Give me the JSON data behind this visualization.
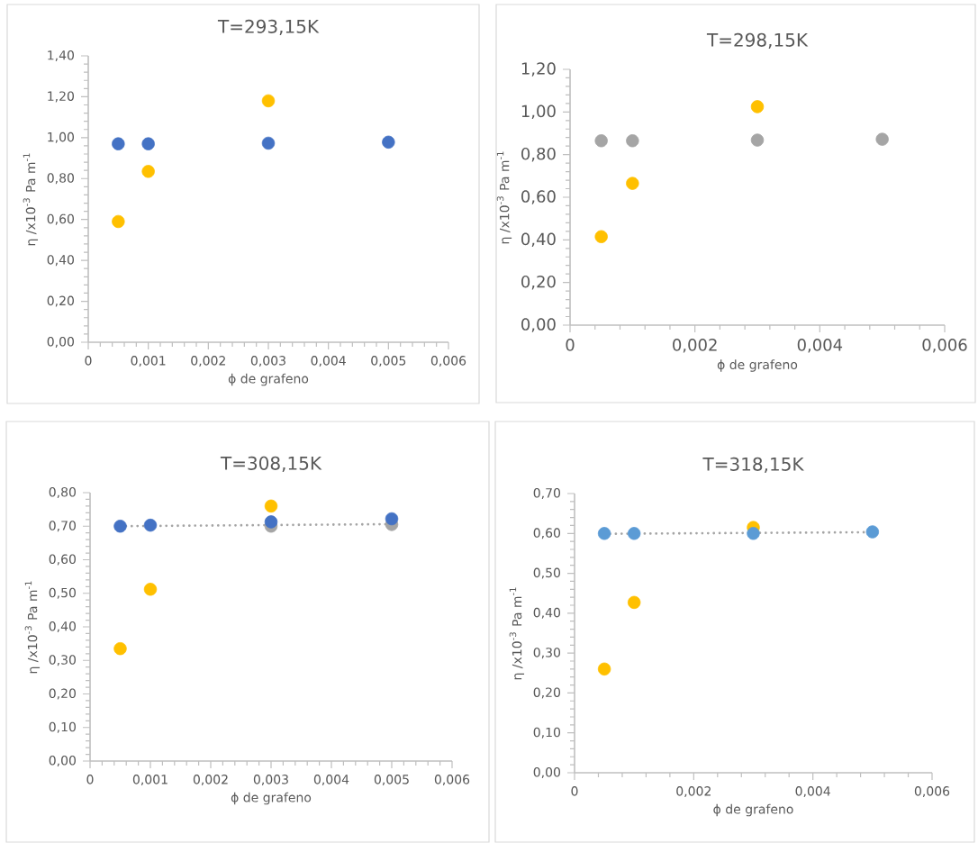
{
  "chart_data": [
    {
      "type": "scatter",
      "title": "T=293,15K",
      "xlabel": "ϕ de grafeno",
      "ylabel": "η /x10$^{-3}$ Pa m$^{-1}$",
      "grid": false,
      "xlim": [
        0,
        0.006
      ],
      "ylim": [
        0,
        1.4
      ],
      "xticks": [
        0,
        {
          "value": 0.001,
          "label": "0,001"
        },
        {
          "value": 0.002,
          "label": "0,002"
        },
        {
          "value": 0.003,
          "label": "0,003"
        },
        {
          "value": 0.004,
          "label": "0,004"
        },
        {
          "value": 0.005,
          "label": "0,005"
        },
        {
          "value": 0.006,
          "label": "0,006"
        }
      ],
      "yticks": [
        {
          "value": 0,
          "label": "0,00"
        },
        {
          "value": 0.2,
          "label": "0,20"
        },
        {
          "value": 0.4,
          "label": "0,40"
        },
        {
          "value": 0.6,
          "label": "0,60"
        },
        {
          "value": 0.8,
          "label": "0,80"
        },
        {
          "value": 1.0,
          "label": "1,00"
        },
        {
          "value": 1.2,
          "label": "1,20"
        },
        {
          "value": 1.4,
          "label": "1,40"
        }
      ],
      "series": [
        {
          "marker": "circle",
          "color": "#4472c4",
          "x": [
            0.0005,
            0.001,
            0.003,
            0.005
          ],
          "values": [
            0.97,
            0.97,
            0.973,
            0.978
          ]
        },
        {
          "marker": "circle",
          "color": "#ffc000",
          "x": [
            0.0005,
            0.001,
            0.003
          ],
          "values": [
            0.59,
            0.835,
            1.18
          ]
        }
      ]
    },
    {
      "type": "scatter",
      "title": "T=298,15K",
      "xlabel": "ϕ de grafeno",
      "ylabel": "η /x10$^{-3}$ Pa m$^{-1}$",
      "grid": false,
      "xlim": [
        0,
        0.006
      ],
      "ylim": [
        0,
        1.2
      ],
      "xticks": [
        0,
        {
          "value": 0.002,
          "label": "0,002"
        },
        {
          "value": 0.004,
          "label": "0,004"
        },
        {
          "value": 0.006,
          "label": "0,006"
        }
      ],
      "yticks": [
        {
          "value": 0,
          "label": "0,00"
        },
        {
          "value": 0.2,
          "label": "0,20"
        },
        {
          "value": 0.4,
          "label": "0,40"
        },
        {
          "value": 0.6,
          "label": "0,60"
        },
        {
          "value": 0.8,
          "label": "0,80"
        },
        {
          "value": 1.0,
          "label": "1,00"
        },
        {
          "value": 1.2,
          "label": "1,20"
        }
      ],
      "series": [
        {
          "marker": "circle",
          "color": "#a5a5a5",
          "x": [
            0.0005,
            0.001,
            0.003,
            0.005
          ],
          "values": [
            0.865,
            0.865,
            0.868,
            0.872
          ]
        },
        {
          "marker": "circle",
          "color": "#ffc000",
          "x": [
            0.0005,
            0.001,
            0.003
          ],
          "values": [
            0.415,
            0.665,
            1.025
          ]
        }
      ]
    },
    {
      "type": "scatter",
      "title": "T=308,15K",
      "xlabel": "ϕ de grafeno",
      "ylabel": "η /x10$^{-3}$ Pa m$^{-1}$",
      "grid": false,
      "xlim": [
        0,
        0.006
      ],
      "ylim": [
        0,
        0.8
      ],
      "xticks": [
        0,
        {
          "value": 0.001,
          "label": "0,001"
        },
        {
          "value": 0.002,
          "label": "0,002"
        },
        {
          "value": 0.003,
          "label": "0,003"
        },
        {
          "value": 0.004,
          "label": "0,004"
        },
        {
          "value": 0.005,
          "label": "0,005"
        },
        {
          "value": 0.006,
          "label": "0,006"
        }
      ],
      "yticks": [
        {
          "value": 0,
          "label": "0,00"
        },
        {
          "value": 0.1,
          "label": "0,10"
        },
        {
          "value": 0.2,
          "label": "0,20"
        },
        {
          "value": 0.3,
          "label": "0,30"
        },
        {
          "value": 0.4,
          "label": "0,40"
        },
        {
          "value": 0.5,
          "label": "0,50"
        },
        {
          "value": 0.6,
          "label": "0,60"
        },
        {
          "value": 0.7,
          "label": "0,70"
        },
        {
          "value": 0.8,
          "label": "0,80"
        }
      ],
      "series": [
        {
          "marker": "circle",
          "color": "#a5a5a5",
          "x": [
            0.003,
            0.005
          ],
          "values": [
            0.7,
            0.705
          ]
        },
        {
          "type": "line",
          "color": "#a5a5a5",
          "line_style": "dotted",
          "x": [
            0.0005,
            0.005
          ],
          "values": [
            0.7,
            0.706
          ]
        },
        {
          "marker": "circle",
          "color": "#4472c4",
          "x": [
            0.0005,
            0.001,
            0.003,
            0.005
          ],
          "values": [
            0.7,
            0.703,
            0.713,
            0.722
          ]
        },
        {
          "marker": "circle",
          "color": "#ffc000",
          "x": [
            0.0005,
            0.001,
            0.003
          ],
          "values": [
            0.335,
            0.512,
            0.76
          ]
        }
      ]
    },
    {
      "type": "scatter",
      "title": "T=318,15K",
      "xlabel": "ϕ de grafeno",
      "ylabel": "η /x10$^{-3}$ Pa m$^{-1}$",
      "grid": false,
      "xlim": [
        0,
        0.006
      ],
      "ylim": [
        0,
        0.7
      ],
      "xticks": [
        0,
        {
          "value": 0.002,
          "label": "0,002"
        },
        {
          "value": 0.004,
          "label": "0,004"
        },
        {
          "value": 0.006,
          "label": "0,006"
        }
      ],
      "yticks": [
        {
          "value": 0,
          "label": "0,00"
        },
        {
          "value": 0.1,
          "label": "0,10"
        },
        {
          "value": 0.2,
          "label": "0,20"
        },
        {
          "value": 0.3,
          "label": "0,30"
        },
        {
          "value": 0.4,
          "label": "0,40"
        },
        {
          "value": 0.5,
          "label": "0,50"
        },
        {
          "value": 0.6,
          "label": "0,60"
        },
        {
          "value": 0.7,
          "label": "0,70"
        }
      ],
      "series": [
        {
          "marker": "circle",
          "color": "#ffc000",
          "x": [
            0.0005,
            0.001,
            0.003
          ],
          "values": [
            0.26,
            0.427,
            0.615
          ]
        },
        {
          "type": "line",
          "color": "#a5a5a5",
          "line_style": "dotted",
          "x": [
            0.0005,
            0.005
          ],
          "values": [
            0.599,
            0.603
          ]
        },
        {
          "marker": "circle",
          "color": "#5b9bd5",
          "x": [
            0.0005,
            0.001,
            0.003,
            0.005
          ],
          "values": [
            0.6,
            0.6,
            0.6,
            0.604
          ]
        }
      ]
    }
  ]
}
